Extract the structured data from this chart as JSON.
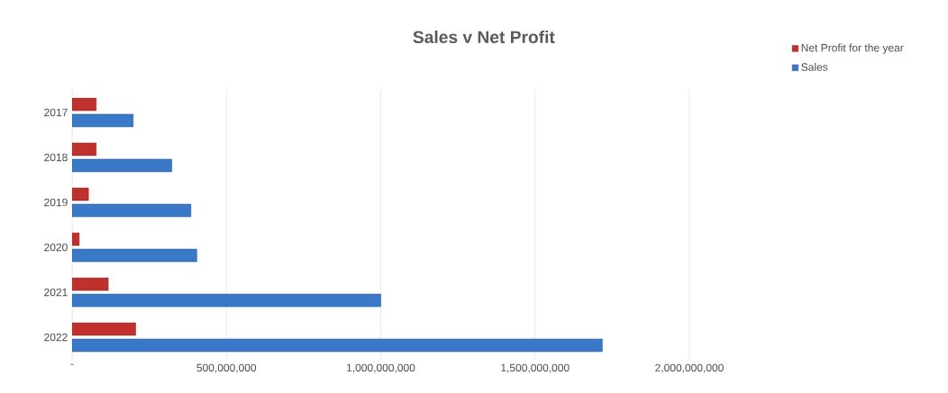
{
  "chart_data": {
    "type": "bar",
    "orientation": "horizontal",
    "title": "Sales v Net Profit",
    "categories": [
      "2017",
      "2018",
      "2019",
      "2020",
      "2021",
      "2022"
    ],
    "series": [
      {
        "name": "Net Profit for the year",
        "color": "#c0302c",
        "values": [
          78000000,
          78000000,
          53000000,
          23000000,
          117000000,
          206000000
        ]
      },
      {
        "name": "Sales",
        "color": "#3a78c8",
        "values": [
          198000000,
          323000000,
          385000000,
          404000000,
          1000000000,
          1718000000
        ]
      }
    ],
    "xlim": [
      0,
      2000000000
    ],
    "xticks": [
      {
        "value": 0,
        "label": "-"
      },
      {
        "value": 500000000,
        "label": "500,000,000"
      },
      {
        "value": 1000000000,
        "label": "1,000,000,000"
      },
      {
        "value": 1500000000,
        "label": "1,500,000,000"
      },
      {
        "value": 2000000000,
        "label": "2,000,000,000"
      }
    ],
    "grid": "x",
    "legend": "top right"
  }
}
